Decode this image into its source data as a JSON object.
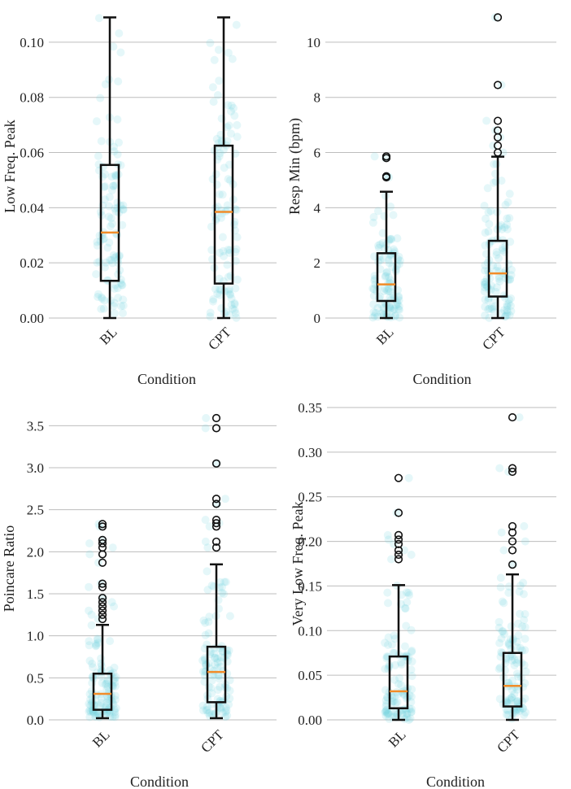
{
  "colors": {
    "grid": "#bdbdbd",
    "box": "#111111",
    "median": "#f28c28",
    "jitter": "#6fd3dd",
    "outlier": "#111111"
  },
  "chart_data": [
    {
      "type": "boxplot",
      "xlabel": "Condition",
      "ylabel": "Low Freq. Peak",
      "categories": [
        "BL",
        "CPT"
      ],
      "ylim": [
        0,
        0.11
      ],
      "yticks": [
        0.0,
        0.02,
        0.04,
        0.06,
        0.08,
        0.1
      ],
      "ytick_labels": [
        "0.00",
        "0.02",
        "0.04",
        "0.06",
        "0.08",
        "0.10"
      ],
      "boxes": [
        {
          "category": "BL",
          "whisker_low": 0.0,
          "q1": 0.0135,
          "median": 0.031,
          "q3": 0.0555,
          "whisker_high": 0.109,
          "outliers": []
        },
        {
          "category": "CPT",
          "whisker_low": 0.0,
          "q1": 0.0125,
          "median": 0.0385,
          "q3": 0.0625,
          "whisker_high": 0.109,
          "outliers": []
        }
      ]
    },
    {
      "type": "boxplot",
      "xlabel": "Condition",
      "ylabel": "Resp Min (bpm)",
      "categories": [
        "BL",
        "CPT"
      ],
      "ylim": [
        0,
        11
      ],
      "yticks": [
        0,
        2,
        4,
        6,
        8,
        10
      ],
      "ytick_labels": [
        "0",
        "2",
        "4",
        "6",
        "8",
        "10"
      ],
      "boxes": [
        {
          "category": "BL",
          "whisker_low": 0.0,
          "q1": 0.62,
          "median": 1.22,
          "q3": 2.35,
          "whisker_high": 4.58,
          "outliers": [
            5.1,
            5.14,
            5.8,
            5.86
          ]
        },
        {
          "category": "CPT",
          "whisker_low": 0.0,
          "q1": 0.78,
          "median": 1.62,
          "q3": 2.8,
          "whisker_high": 5.85,
          "outliers": [
            6.0,
            6.25,
            6.55,
            6.8,
            7.15,
            8.45,
            10.9
          ]
        }
      ]
    },
    {
      "type": "boxplot",
      "xlabel": "Condition",
      "ylabel": "Poincare Ratio",
      "categories": [
        "BL",
        "CPT"
      ],
      "ylim": [
        0,
        3.6
      ],
      "yticks": [
        0.0,
        0.5,
        1.0,
        1.5,
        2.0,
        2.5,
        3.0,
        3.5
      ],
      "ytick_labels": [
        "0.0",
        "0.5",
        "1.0",
        "1.5",
        "2.0",
        "2.5",
        "3.0",
        "3.5"
      ],
      "boxes": [
        {
          "category": "BL",
          "whisker_low": 0.02,
          "q1": 0.12,
          "median": 0.31,
          "q3": 0.55,
          "whisker_high": 1.13,
          "outliers": [
            1.2,
            1.25,
            1.3,
            1.35,
            1.4,
            1.45,
            1.58,
            1.62,
            1.87,
            1.97,
            2.05,
            2.1,
            2.14,
            2.3,
            2.33
          ]
        },
        {
          "category": "CPT",
          "whisker_low": 0.02,
          "q1": 0.21,
          "median": 0.57,
          "q3": 0.87,
          "whisker_high": 1.85,
          "outliers": [
            2.05,
            2.12,
            2.3,
            2.34,
            2.38,
            2.57,
            2.63,
            3.05,
            3.47,
            3.59
          ]
        }
      ]
    },
    {
      "type": "boxplot",
      "xlabel": "Condition",
      "ylabel": "Very Low Freq. Peak",
      "categories": [
        "BL",
        "CPT"
      ],
      "ylim": [
        0,
        0.35
      ],
      "yticks": [
        0.0,
        0.05,
        0.1,
        0.15,
        0.2,
        0.25,
        0.3,
        0.35
      ],
      "ytick_labels": [
        "0.00",
        "0.05",
        "0.10",
        "0.15",
        "0.20",
        "0.25",
        "0.30",
        "0.35"
      ],
      "boxes": [
        {
          "category": "BL",
          "whisker_low": 0.0,
          "q1": 0.013,
          "median": 0.032,
          "q3": 0.071,
          "whisker_high": 0.151,
          "outliers": [
            0.18,
            0.185,
            0.19,
            0.197,
            0.202,
            0.207,
            0.232,
            0.271
          ]
        },
        {
          "category": "CPT",
          "whisker_low": 0.0,
          "q1": 0.015,
          "median": 0.038,
          "q3": 0.075,
          "whisker_high": 0.163,
          "outliers": [
            0.174,
            0.19,
            0.2,
            0.21,
            0.217,
            0.278,
            0.282,
            0.339
          ]
        }
      ]
    }
  ]
}
